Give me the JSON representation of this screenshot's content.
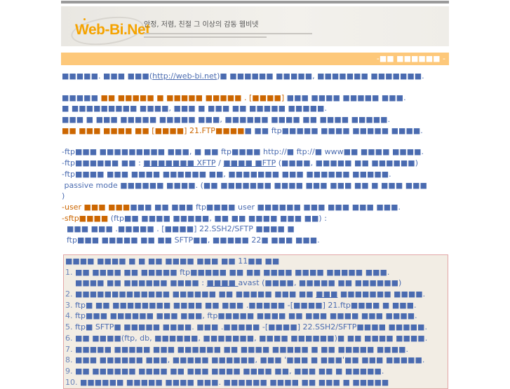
{
  "banner": {
    "logo_text": "Web-Bi.Net",
    "tagline": "안정, 저렴, 친절 그 이상의 감동 웹비넷"
  },
  "header_bar": {
    "title": "-■■ ■■■■■■ -"
  },
  "colors": {
    "text": "#4a6bb0",
    "accent": "#cc6600",
    "bar": "#fdc87a",
    "box_bg": "#f2ede4",
    "box_border": "#e3a6a6"
  },
  "intro": [
    [
      {
        "t": "■■■■■. ■■■ ■■■("
      },
      {
        "t": "http://web-bi.net",
        "u": true,
        "link": true
      },
      {
        "t": ")■ ■■■■■■ ■■■■■, ■■■■■■■ ■■■■■■■."
      }
    ]
  ],
  "paragraph": [
    [
      {
        "t": "■■■■■ "
      },
      {
        "t": "■■ ■■■■■ ■ ■■■■■ ■■■■■ . [■■■■]",
        "o": true
      },
      {
        "t": " ■■■ ■■■■ ■■■■■ ■■■."
      }
    ],
    [
      {
        "t": "■ ■■■■■■■■■ ■■■■, ■■■ ■ ■■■ ■■ ■■■■■ ■■■■■."
      }
    ],
    [
      {
        "t": "■■■ ■ ■■■ ■■■■■ ■■■■■ ■■■, ■■■■■■ ■■■■ ■■ ■■■■ ■■■■■."
      }
    ],
    [
      {
        "t": "■■ ■■■ ■■■■ ■■ [■■■■] 21.FTP■■■■",
        "o": true
      },
      {
        "t": "■ ■■ ftp■■■■■ ■■■■ ■■■■■ ■■■■."
      }
    ]
  ],
  "ftp_notes": [
    [
      {
        "t": "-ftp■■■ ■■■■■■■■■ ■■■, ■ ■■ ftp■■■■ http://■ ftp://■ www■■ ■■■■ ■■■■."
      }
    ],
    [
      {
        "t": "-ftp■■■■■■ ■■ : "
      },
      {
        "t": "■■■■■■■ XFTP",
        "u": true,
        "link": true
      },
      {
        "t": " / "
      },
      {
        "t": "■■■■ ■FTP",
        "u": true,
        "link": true
      },
      {
        "t": " (■■■■, ■■■■■ ■■ ■■■■■■)"
      }
    ],
    [
      {
        "t": "-ftp■■■■ ■■■ ■■■■ ■■■■■■ ■■, ■■■■■■■ ■■■ ■■■■■■ ■■■■■."
      }
    ],
    [
      {
        "t": " passive mode ■■■■■■ ■■■■. (■■ ■■■■■■■ ■■■■ ■■■ ■■■ ■■ ■ ■■■ ■■■"
      }
    ],
    [
      {
        "t": ")"
      }
    ],
    [
      {
        "t": "-user ■■■ ■■■",
        "o": true
      },
      {
        "t": "■■■ ■■ ■■■ ftp■■■■ user ■■■■■■ ■■■ ■■■ ■■■ ■■■."
      }
    ],
    [
      {
        "t": "-sftp■■■■",
        "o": true
      },
      {
        "t": " (ftp■■ ■■■■ ■■■■■, ■■ ■■ ■■■■ ■■■ ■■) :"
      }
    ],
    [
      {
        "t": "  ■■■ ■■■ .■■■■■ . [■■■■] 22.SSH2/SFTP ■■■■ ■"
      }
    ],
    [
      {
        "t": "  ftp■■■ ■■■■■ ■■ ■■ SFTP■■, ■■■■■ 22■ ■■■ ■■■."
      }
    ]
  ],
  "checklist": [
    [
      {
        "t": "■■■■ ■■■■ ■ ■ ■■ ■■■■ ■■■ ■■ 11■■ ■■"
      }
    ],
    [
      {
        "t": "1. ",
        "n": true
      },
      {
        "t": "■■ ■■■■ ■■ ■■■■■ ftp■■■■■ ■■ ■■ ■■■■ ■■■■ ■■■■■ ■■■."
      }
    ],
    [
      {
        "t": "    ■■■■ ■■ ■■■■■■ ■■■■ : "
      },
      {
        "t": "■■■■ ",
        "u": true,
        "link": true
      },
      {
        "t": "avast (■■■■, ■■■■■ ■■ ■■■■■■)"
      }
    ],
    [
      {
        "t": "2. ",
        "n": true
      },
      {
        "t": "■■■■■■■■■■■■■ ■■■■■■ ■■ ■■■■■ ■■■ ■■ "
      },
      {
        "t": "■■■",
        "u": true
      },
      {
        "t": " ■■■■■■■ ■■■■."
      }
    ],
    [
      {
        "t": "3. ",
        "n": true
      },
      {
        "t": "ftp■ ■■ ■■■■■■■■ ■■■■ ■■ ■■■ .■■■■■ -[■■■■] 21.ftp■■■■ ■ ■■■."
      }
    ],
    [
      {
        "t": "4. ",
        "n": true
      },
      {
        "t": "ftp■■■ ■■■■■■ ■■■ ■■■, ftp■■■■■ ■■■■ ■■ ■■■ ■■■■ ■■■ ■■■■."
      }
    ],
    [
      {
        "t": "5. ",
        "n": true
      },
      {
        "t": "ftp■ SFTP■ ■■■■■ ■■■■. ■■■ .■■■■■ -[■■■■] 22.SSH2/SFTP■■■■ ■■■■■."
      }
    ],
    [
      {
        "t": "6. ",
        "n": true
      },
      {
        "t": "■■ ■■■■(ftp, db, ■■■■■■, ■■■■■■■, ■■■■ ■■■■■■)■ ■■ ■■■■ ■■■■."
      }
    ],
    [
      {
        "t": "7. ",
        "n": true
      },
      {
        "t": "■■■■■ ■■■■■ ■■■ ■■■■■■ ■■ ■■■■ ■■■■■ ■ ■■ ■■■■■ ■■■■."
      }
    ],
    [
      {
        "t": "8. ",
        "n": true
      },
      {
        "t": "■■■ ■■■■■■ ■■■, ■■■■■ ■■■■■■, ■■■ '■■■ ■ ■■■'■■ ■■■ ■■■■■."
      }
    ],
    [
      {
        "t": "9. ",
        "n": true
      },
      {
        "t": "■■ ■■■■■■ ■■■■ ■■ ■■■ ■■■■ ■■■■ ■■, ■■■ ■■ ■ ■■■■■."
      }
    ],
    [
      {
        "t": "10. ",
        "n": true
      },
      {
        "t": "■■■■■■ ■■■■■ ■■■■ ■■■. ■■■■■■ ■■■■ ■■ ■■■ ■ ■■■■■"
      }
    ]
  ]
}
